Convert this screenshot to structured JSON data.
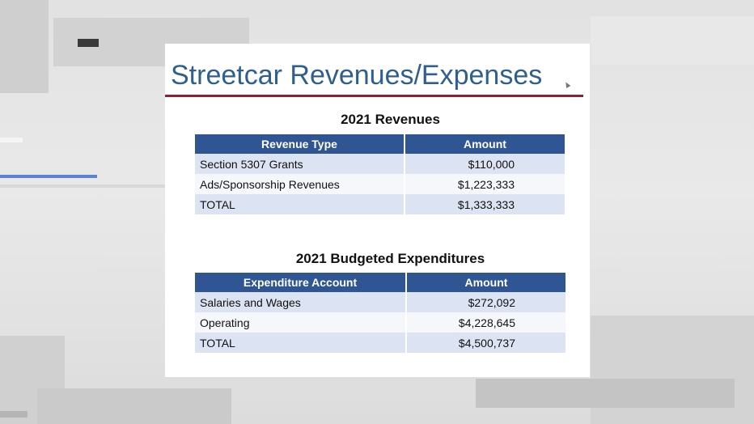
{
  "slide": {
    "title": "Streetcar Revenues/Expenses"
  },
  "revenues": {
    "heading": "2021 Revenues",
    "columns": [
      "Revenue Type",
      "Amount"
    ],
    "rows": [
      {
        "type": "Section 5307 Grants",
        "amount": "$110,000"
      },
      {
        "type": "Ads/Sponsorship Revenues",
        "amount": "$1,223,333"
      },
      {
        "type": "TOTAL",
        "amount": "$1,333,333"
      }
    ]
  },
  "expenditures": {
    "heading": "2021 Budgeted Expenditures",
    "columns": [
      "Expenditure Account",
      "Amount"
    ],
    "rows": [
      {
        "account": "Salaries and Wages",
        "amount": "$272,092"
      },
      {
        "account": "Operating",
        "amount": "$4,228,645"
      },
      {
        "account": "TOTAL",
        "amount": "$4,500,737"
      }
    ]
  },
  "colors": {
    "title": "#2f5f8f",
    "rule": "#8b2231",
    "header_bg": "#2f5593",
    "row_alt": "#dce3f2"
  }
}
